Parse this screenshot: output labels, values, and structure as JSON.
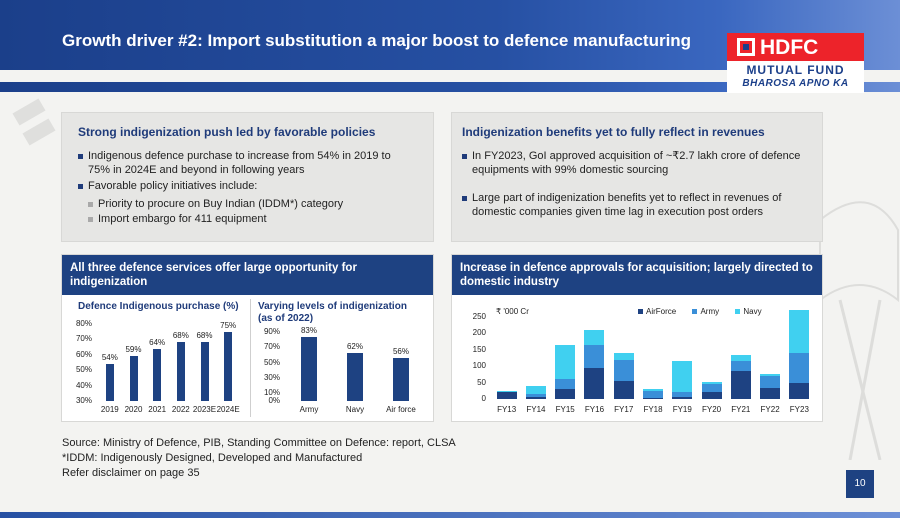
{
  "header": {
    "title": "Growth driver #2: Import substitution a major boost to defence manufacturing",
    "logo_name": "HDFC",
    "logo_sub": "MUTUAL FUND",
    "logo_tagline": "BHAROSA APNO KA"
  },
  "left_panel": {
    "title": "Strong indigenization push led by favorable policies",
    "bullets": [
      "Indigenous defence purchase to increase from 54% in 2019 to 75% in 2024E and beyond in following years",
      "Favorable policy initiatives include:"
    ],
    "sub_bullets": [
      "Priority to procure on Buy Indian (IDDM*) category",
      "Import embargo for 411 equipment"
    ]
  },
  "right_panel": {
    "title": "Indigenization benefits yet to fully reflect in revenues",
    "bullets": [
      "In FY2023, GoI approved acquisition of ~₹2.7 lakh crore of defence equipments with 99% domestic sourcing",
      "Large part of indigenization benefits yet to reflect in revenues of domestic companies given time lag in execution post orders"
    ]
  },
  "left_chart_panel": {
    "header": "All three defence services offer large opportunity for indigenization"
  },
  "right_chart_panel": {
    "header": "Increase in defence approvals for acquisition; largely directed to domestic industry"
  },
  "chart_data": [
    {
      "type": "bar",
      "title": "Defence Indigenous purchase (%)",
      "categories": [
        "2019",
        "2020",
        "2021",
        "2022",
        "2023E",
        "2024E"
      ],
      "values": [
        54,
        59,
        64,
        68,
        68,
        75
      ],
      "data_labels": [
        "54%",
        "59%",
        "64%",
        "68%",
        "68%",
        "75%"
      ],
      "y_ticks": [
        "30%",
        "40%",
        "50%",
        "60%",
        "70%",
        "80%"
      ],
      "ylim": [
        30,
        80
      ],
      "color": "#1e4282"
    },
    {
      "type": "bar",
      "title": "Varying levels of indigenization (as of 2022)",
      "categories": [
        "Army",
        "Navy",
        "Air force"
      ],
      "values": [
        83,
        62,
        56
      ],
      "data_labels": [
        "83%",
        "62%",
        "56%"
      ],
      "y_ticks": [
        "0%",
        "10%",
        "30%",
        "50%",
        "70%",
        "90%"
      ],
      "ylim": [
        0,
        90
      ],
      "color": "#1e4282"
    },
    {
      "type": "bar",
      "stacked": true,
      "unit_label": "₹ '000 Cr",
      "categories": [
        "FY13",
        "FY14",
        "FY15",
        "FY16",
        "FY17",
        "FY18",
        "FY19",
        "FY20",
        "FY21",
        "FY22",
        "FY23"
      ],
      "y_ticks": [
        "0",
        "50",
        "100",
        "150",
        "200",
        "250"
      ],
      "ylim": [
        0,
        250
      ],
      "legend_position": "top-right",
      "series": [
        {
          "name": "AirForce",
          "color": "#1e4282",
          "values": [
            20,
            5,
            30,
            95,
            55,
            3,
            5,
            20,
            85,
            35,
            50
          ]
        },
        {
          "name": "Army",
          "color": "#3a8fd8",
          "values": [
            3,
            10,
            30,
            70,
            65,
            22,
            15,
            25,
            30,
            35,
            90
          ]
        },
        {
          "name": "Navy",
          "color": "#40d0f0",
          "values": [
            2,
            25,
            105,
            45,
            20,
            5,
            95,
            8,
            20,
            5,
            130
          ]
        }
      ]
    }
  ],
  "footer": {
    "source": "Source: Ministry of Defence, PIB, Standing Committee on Defence: report, CLSA",
    "note": "*IDDM: Indigenously Designed, Developed and Manufactured",
    "disclaimer": "Refer disclaimer on page 35",
    "page_number": "10"
  }
}
